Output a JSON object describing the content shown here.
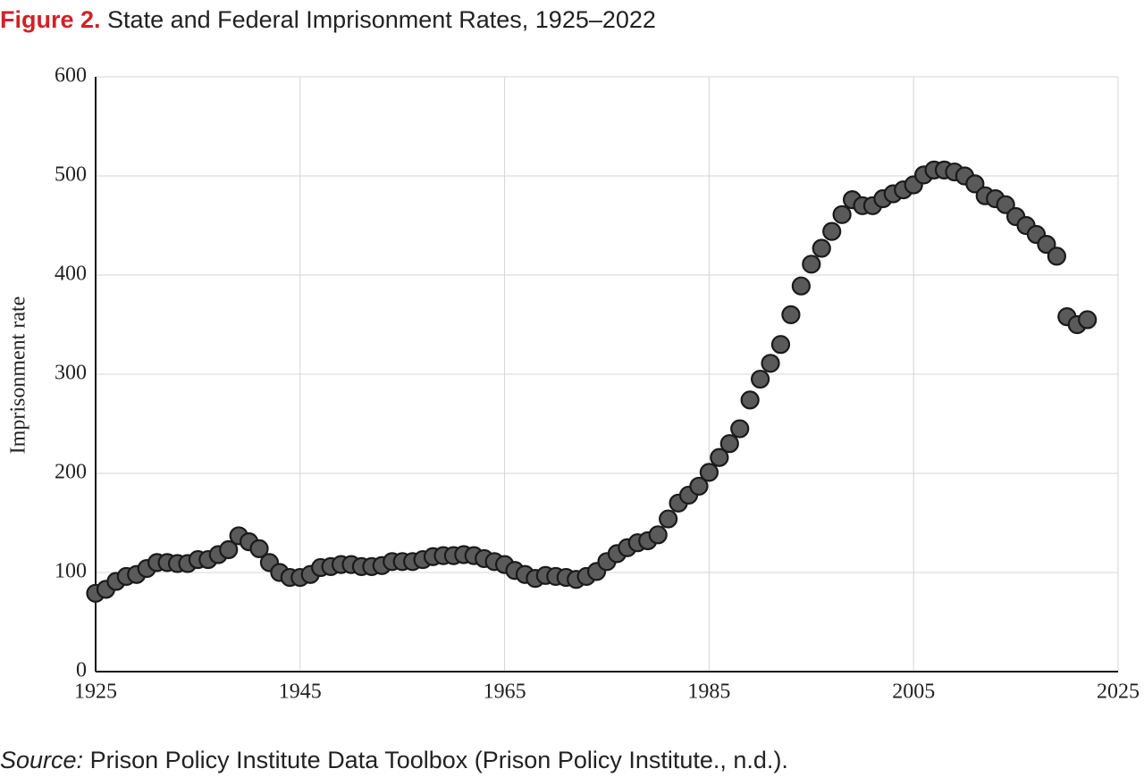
{
  "chart_data": {
    "type": "scatter",
    "title_prefix": "Figure 2.",
    "title": "State and Federal Imprisonment Rates, 1925–2022",
    "y_label": "Imprisonment rate",
    "source_prefix": "Source:",
    "source": "Prison Policy Institute Data Toolbox (Prison Policy Institute., n.d.).",
    "x": [
      1925,
      1926,
      1927,
      1928,
      1929,
      1930,
      1931,
      1932,
      1933,
      1934,
      1935,
      1936,
      1937,
      1938,
      1939,
      1940,
      1941,
      1942,
      1943,
      1944,
      1945,
      1946,
      1947,
      1948,
      1949,
      1950,
      1951,
      1952,
      1953,
      1954,
      1955,
      1956,
      1957,
      1958,
      1959,
      1960,
      1961,
      1962,
      1963,
      1964,
      1965,
      1966,
      1967,
      1968,
      1969,
      1970,
      1971,
      1972,
      1973,
      1974,
      1975,
      1976,
      1977,
      1978,
      1979,
      1980,
      1981,
      1982,
      1983,
      1984,
      1985,
      1986,
      1987,
      1988,
      1989,
      1990,
      1991,
      1992,
      1993,
      1994,
      1995,
      1996,
      1997,
      1998,
      1999,
      2000,
      2001,
      2002,
      2003,
      2004,
      2005,
      2006,
      2007,
      2008,
      2009,
      2010,
      2011,
      2012,
      2013,
      2014,
      2015,
      2016,
      2017,
      2018,
      2019,
      2020,
      2021,
      2022
    ],
    "series": [
      {
        "name": "Imprisonment rate",
        "color": "#5a5a5a",
        "values": [
          79,
          83,
          91,
          96,
          98,
          104,
          110,
          110,
          109,
          109,
          113,
          113,
          118,
          123,
          137,
          131,
          124,
          110,
          100,
          95,
          95,
          98,
          105,
          106,
          108,
          108,
          106,
          106,
          107,
          111,
          111,
          111,
          113,
          116,
          117,
          117,
          118,
          117,
          114,
          111,
          108,
          102,
          98,
          94,
          97,
          96,
          95,
          93,
          96,
          101,
          111,
          119,
          125,
          130,
          132,
          138,
          154,
          170,
          178,
          187,
          201,
          216,
          230,
          245,
          274,
          295,
          311,
          330,
          360,
          389,
          411,
          427,
          444,
          461,
          476,
          470,
          470,
          477,
          482,
          486,
          491,
          501,
          506,
          506,
          504,
          500,
          492,
          480,
          477,
          471,
          459,
          450,
          441,
          431,
          419,
          358,
          350,
          355
        ]
      }
    ],
    "xlim": [
      1925,
      2025
    ],
    "xticks": [
      1925,
      1945,
      1965,
      1985,
      2005,
      2025
    ],
    "ylim": [
      0,
      600
    ],
    "yticks": [
      0,
      100,
      200,
      300,
      400,
      500,
      600
    ],
    "grid": true
  }
}
